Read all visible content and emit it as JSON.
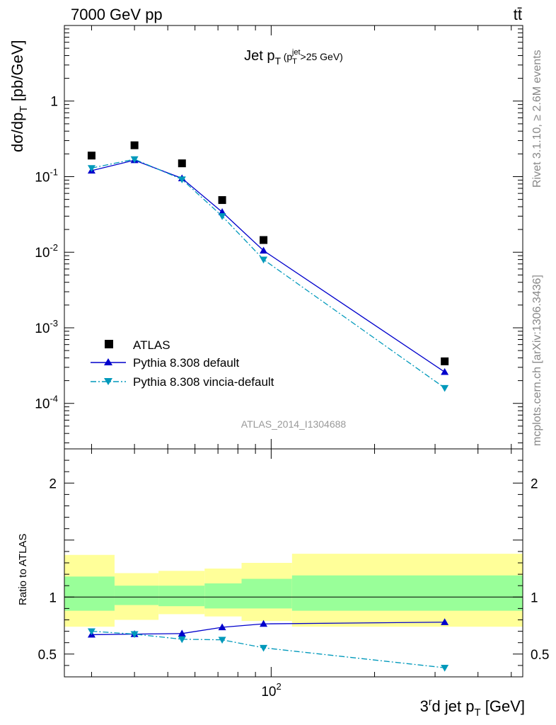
{
  "header": {
    "left": "7000 GeV pp",
    "right": "tt̄",
    "side_top": "Rivet 3.1.10, ≥ 2.6M events",
    "side_bottom": "mcplots.cern.ch [arXiv:1306.3436]",
    "watermark": "ATLAS_2014_I1304688"
  },
  "colors": {
    "data": "#000000",
    "pythia_default": "#0000cc",
    "pythia_vincia": "#0099bb",
    "band_outer": "#ffff99",
    "band_inner": "#99ff99"
  },
  "chart_data": [
    {
      "type": "scatter",
      "title": "Jet p_T (p_T^jet > 25 GeV)",
      "ylabel": "dσ/dp_T [pb/GeV]",
      "yscale": "log",
      "xscale": "log",
      "xlim": [
        25,
        540
      ],
      "ylim": [
        2.5e-05,
        10
      ],
      "y_tick_labels": [
        "1",
        "10^-1",
        "10^-2",
        "10^-3",
        "10^-4"
      ],
      "legend_position": "lower-left",
      "series": [
        {
          "name": "ATLAS",
          "marker": "square",
          "x": [
            30,
            40,
            55,
            72,
            95,
            320
          ],
          "y": [
            0.19,
            0.26,
            0.15,
            0.049,
            0.0145,
            0.00036
          ]
        },
        {
          "name": "Pythia 8.308 default",
          "marker": "triangle-up",
          "line": "solid",
          "x": [
            30,
            40,
            55,
            72,
            95,
            320
          ],
          "y": [
            0.12,
            0.165,
            0.095,
            0.034,
            0.0105,
            0.00026
          ]
        },
        {
          "name": "Pythia 8.308 vincia-default",
          "marker": "triangle-down",
          "line": "dashdot",
          "x": [
            30,
            40,
            55,
            72,
            95,
            320
          ],
          "y": [
            0.13,
            0.17,
            0.092,
            0.03,
            0.008,
            0.00016
          ]
        }
      ]
    },
    {
      "type": "line",
      "xlabel": "3^rd jet p_T [GeV]",
      "ylabel": "Ratio to ATLAS",
      "xscale": "log",
      "xlim": [
        25,
        540
      ],
      "ylim": [
        0.3,
        2.3
      ],
      "y_tick_labels": [
        "0.5",
        "1",
        "2"
      ],
      "x_tick_labels": [
        "10^2"
      ],
      "reference_line": 1,
      "uncertainty_bands": [
        {
          "x_low": 25,
          "x_high": 35,
          "outer": [
            0.74,
            1.37
          ],
          "inner": [
            0.88,
            1.18
          ]
        },
        {
          "x_low": 35,
          "x_high": 47,
          "outer": [
            0.8,
            1.21
          ],
          "inner": [
            0.93,
            1.1
          ]
        },
        {
          "x_low": 47,
          "x_high": 64,
          "outer": [
            0.85,
            1.23
          ],
          "inner": [
            0.92,
            1.1
          ]
        },
        {
          "x_low": 64,
          "x_high": 82,
          "outer": [
            0.83,
            1.25
          ],
          "inner": [
            0.9,
            1.12
          ]
        },
        {
          "x_low": 82,
          "x_high": 115,
          "outer": [
            0.79,
            1.3
          ],
          "inner": [
            0.9,
            1.16
          ]
        },
        {
          "x_low": 115,
          "x_high": 540,
          "outer": [
            0.74,
            1.38
          ],
          "inner": [
            0.88,
            1.19
          ]
        }
      ],
      "series": [
        {
          "name": "Pythia 8.308 default",
          "marker": "triangle-up",
          "line": "solid",
          "x": [
            30,
            40,
            55,
            72,
            95,
            320
          ],
          "y": [
            0.67,
            0.675,
            0.68,
            0.735,
            0.765,
            0.78
          ]
        },
        {
          "name": "Pythia 8.308 vincia-default",
          "marker": "triangle-down",
          "line": "dashdot",
          "x": [
            30,
            40,
            55,
            72,
            95,
            320
          ],
          "y": [
            0.7,
            0.675,
            0.63,
            0.625,
            0.555,
            0.38
          ]
        }
      ]
    }
  ]
}
